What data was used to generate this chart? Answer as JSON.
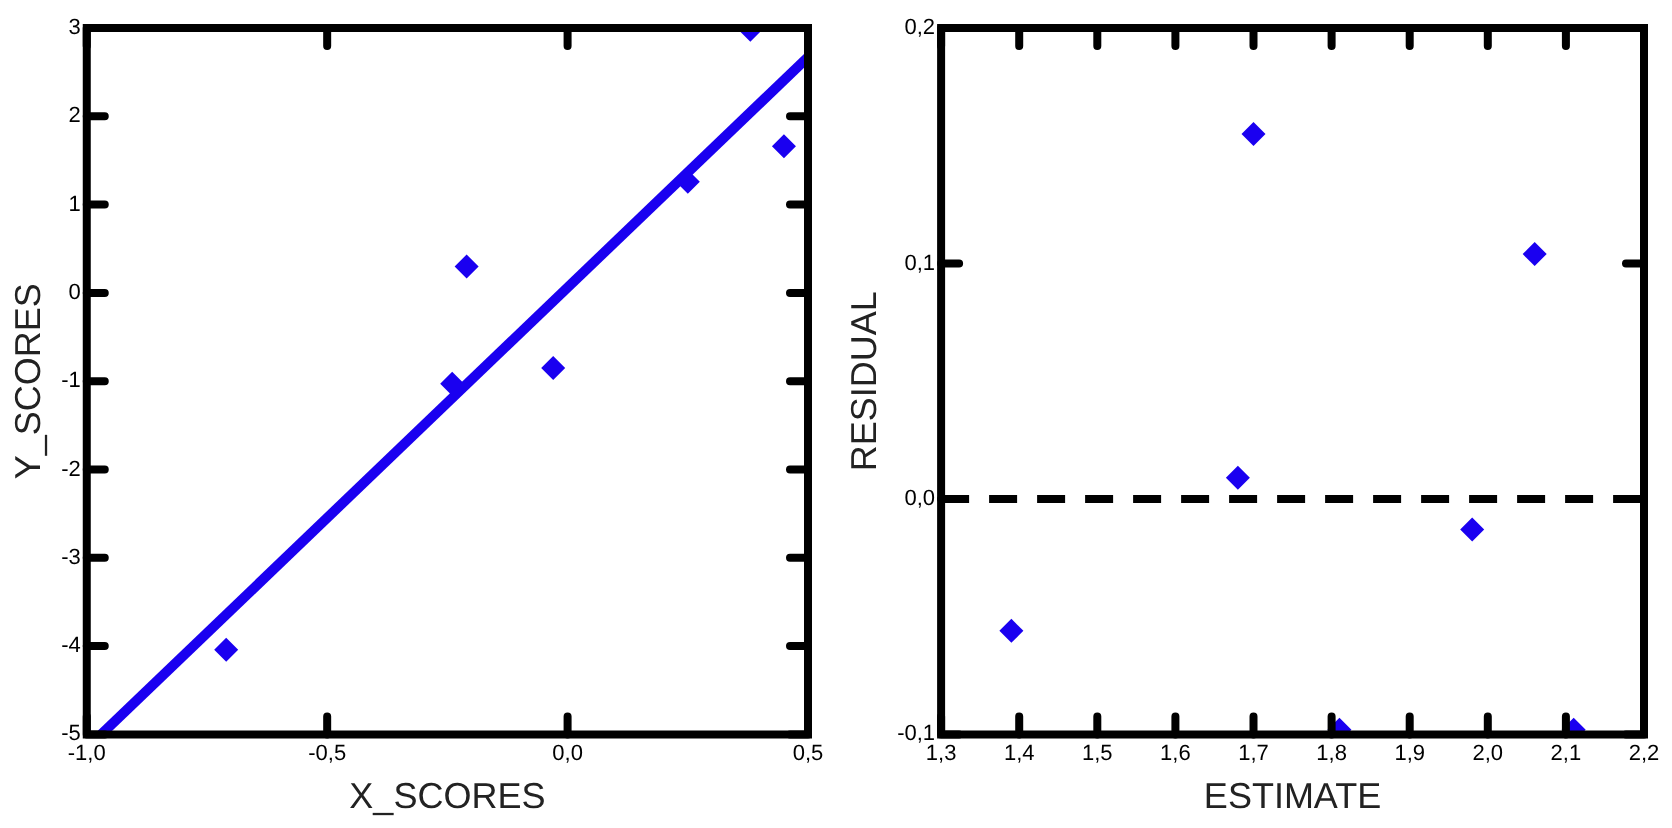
{
  "chart_data": [
    {
      "type": "scatter",
      "xlabel": "X_SCORES",
      "ylabel": "Y_SCORES",
      "marker": "diamond",
      "grid": false,
      "legend": false,
      "xlim": [
        -1.0,
        0.5
      ],
      "xticks": [
        {
          "value": -1.0,
          "label": "-1,0"
        },
        {
          "value": -0.5,
          "label": "-0,5"
        },
        {
          "value": 0,
          "label": "0,0"
        },
        {
          "value": 0.5,
          "label": "0,5"
        }
      ],
      "ylim": [
        -5,
        3
      ],
      "yticks": [
        -5,
        -4,
        -3,
        -2,
        -1,
        0,
        1,
        2,
        3
      ],
      "series": [
        {
          "type": "scatter",
          "color": "#1a00f0",
          "x": [
            -0.71,
            -0.24,
            -0.21,
            -0.03,
            0.25,
            0.38,
            0.45
          ],
          "values": [
            -4.04,
            -1.03,
            0.3,
            -0.85,
            1.26,
            2.98,
            1.66
          ]
        },
        {
          "type": "line",
          "color": "#1a00f0",
          "marker": "none",
          "line_style": "solid",
          "x": [
            -0.97,
            0.5
          ],
          "values": [
            -5,
            2.67
          ]
        }
      ]
    },
    {
      "type": "scatter",
      "xlabel": "ESTIMATE",
      "ylabel": "RESIDUAL",
      "marker": "diamond",
      "grid": false,
      "legend": false,
      "xlim": [
        1.3,
        2.2
      ],
      "xticks": [
        {
          "value": 1.3,
          "label": "1,3"
        },
        {
          "value": 1.4,
          "label": "1,4"
        },
        {
          "value": 1.5,
          "label": "1,5"
        },
        {
          "value": 1.6,
          "label": "1,6"
        },
        {
          "value": 1.7,
          "label": "1,7"
        },
        {
          "value": 1.8,
          "label": "1,8"
        },
        {
          "value": 1.9,
          "label": "1,9"
        },
        {
          "value": 2.0,
          "label": "2,0"
        },
        {
          "value": 2.1,
          "label": "2,1"
        },
        {
          "value": 2.2,
          "label": "2,2"
        }
      ],
      "ylim": [
        -0.1,
        0.2
      ],
      "yticks": [
        {
          "value": -0.1,
          "label": "-0,1"
        },
        {
          "value": 0,
          "label": "0,0"
        },
        {
          "value": 0.1,
          "label": "0,1"
        },
        {
          "value": 0.2,
          "label": "0,2"
        }
      ],
      "ref_lines": [
        {
          "axis": "y",
          "value": 0,
          "color": "#000000",
          "line_style": "dashed"
        }
      ],
      "series": [
        {
          "type": "scatter",
          "color": "#1a00f0",
          "x": [
            1.39,
            1.68,
            1.7,
            1.81,
            1.98,
            2.06,
            2.11
          ],
          "values": [
            -0.056,
            0.009,
            0.155,
            -0.098,
            -0.013,
            0.104,
            -0.098
          ]
        }
      ]
    }
  ]
}
